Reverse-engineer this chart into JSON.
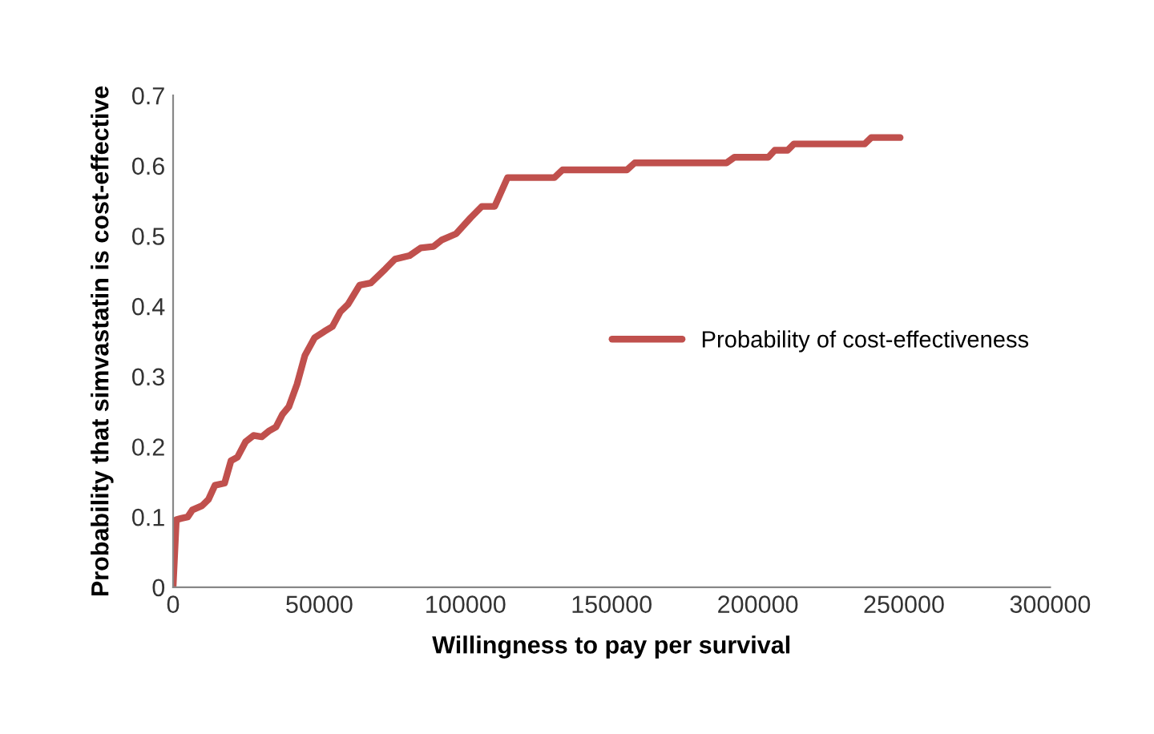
{
  "chart_data": {
    "type": "line",
    "xlabel": "Willingness to pay per survival",
    "ylabel": "Probability that simvastatin is cost-effective",
    "x": [
      0,
      1100,
      2800,
      5000,
      6600,
      9900,
      12100,
      14300,
      17600,
      19800,
      22000,
      24800,
      27500,
      30300,
      33000,
      35200,
      37400,
      39600,
      42400,
      45100,
      48400,
      51700,
      54500,
      57200,
      59900,
      63800,
      67600,
      72600,
      75900,
      80900,
      84700,
      89100,
      91800,
      96800,
      101800,
      105600,
      110000,
      114400,
      130400,
      133200,
      155200,
      157900,
      189300,
      192000,
      203600,
      205800,
      210200,
      212400,
      236600,
      238800,
      248700
    ],
    "series": [
      {
        "name": "Probability of cost-effectiveness",
        "color": "#c0504d",
        "values": [
          0,
          0.096,
          0.098,
          0.1,
          0.11,
          0.116,
          0.125,
          0.145,
          0.148,
          0.18,
          0.185,
          0.207,
          0.216,
          0.214,
          0.223,
          0.228,
          0.246,
          0.257,
          0.289,
          0.33,
          0.355,
          0.364,
          0.371,
          0.392,
          0.403,
          0.43,
          0.433,
          0.453,
          0.467,
          0.472,
          0.483,
          0.485,
          0.494,
          0.503,
          0.526,
          0.542,
          0.542,
          0.583,
          0.583,
          0.594,
          0.594,
          0.604,
          0.604,
          0.612,
          0.612,
          0.622,
          0.622,
          0.631,
          0.631,
          0.64,
          0.64
        ]
      }
    ],
    "xlim": [
      0,
      300000
    ],
    "xticks": [
      0,
      50000,
      100000,
      150000,
      200000,
      250000,
      300000
    ],
    "ylim": [
      0,
      0.7
    ],
    "yticks": [
      0,
      0.1,
      0.2,
      0.3,
      0.4,
      0.5,
      0.6,
      0.7
    ],
    "grid": false,
    "legend": "center right",
    "marker": "none",
    "line_style": "solid"
  }
}
